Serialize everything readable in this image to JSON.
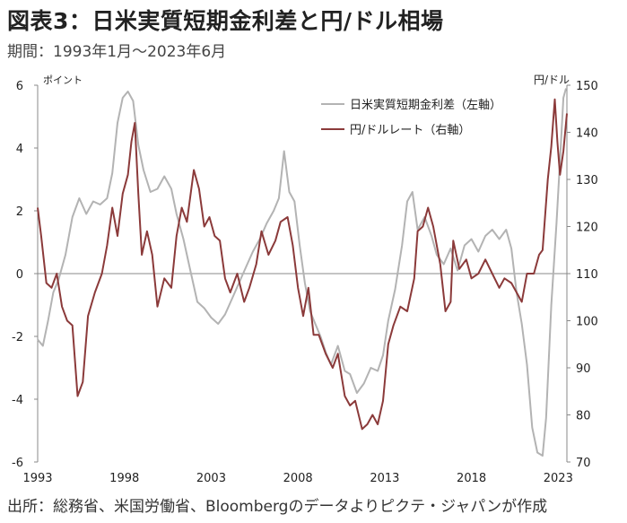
{
  "header": {
    "title": "図表3：日米実質短期金利差と円/ドル相場",
    "subtitle": "期間：1993年1月～2023年6月"
  },
  "footer": {
    "source": "出所：総務省、米国労働省、Bloombergのデータよりピクテ・ジャパンが作成"
  },
  "chart_data": {
    "type": "line",
    "xlim": [
      1993.0,
      2023.5
    ],
    "x_ticks": [
      1993,
      1998,
      2003,
      2008,
      2013,
      2018,
      2023
    ],
    "y_left": {
      "unit_label": "ポイント",
      "lim": [
        -6,
        6
      ],
      "ticks": [
        -6,
        -4,
        -2,
        0,
        2,
        4,
        6
      ],
      "color": "#222222"
    },
    "y_right": {
      "unit_label": "円/ドル",
      "lim": [
        70,
        150
      ],
      "ticks": [
        70,
        80,
        90,
        100,
        110,
        120,
        130,
        140,
        150
      ],
      "color": "#222222"
    },
    "zero_line": 0,
    "legend_position": "top-center",
    "series": [
      {
        "name": "日米実質短期金利差（左軸）",
        "axis": "left",
        "color": "#b3b3b3",
        "points": [
          [
            1993.0,
            -2.1
          ],
          [
            1993.3,
            -2.3
          ],
          [
            1993.6,
            -1.5
          ],
          [
            1993.9,
            -0.6
          ],
          [
            1994.2,
            -0.2
          ],
          [
            1994.6,
            0.6
          ],
          [
            1995.0,
            1.8
          ],
          [
            1995.4,
            2.4
          ],
          [
            1995.8,
            1.9
          ],
          [
            1996.2,
            2.3
          ],
          [
            1996.6,
            2.2
          ],
          [
            1997.0,
            2.4
          ],
          [
            1997.3,
            3.2
          ],
          [
            1997.6,
            4.8
          ],
          [
            1997.9,
            5.6
          ],
          [
            1998.2,
            5.8
          ],
          [
            1998.5,
            5.5
          ],
          [
            1998.8,
            4.1
          ],
          [
            1999.1,
            3.3
          ],
          [
            1999.5,
            2.6
          ],
          [
            1999.9,
            2.7
          ],
          [
            2000.3,
            3.1
          ],
          [
            2000.7,
            2.7
          ],
          [
            2001.0,
            1.9
          ],
          [
            2001.4,
            1.1
          ],
          [
            2001.8,
            0.1
          ],
          [
            2002.2,
            -0.9
          ],
          [
            2002.6,
            -1.1
          ],
          [
            2003.0,
            -1.4
          ],
          [
            2003.4,
            -1.6
          ],
          [
            2003.8,
            -1.3
          ],
          [
            2004.2,
            -0.8
          ],
          [
            2004.6,
            -0.3
          ],
          [
            2005.0,
            0.2
          ],
          [
            2005.4,
            0.7
          ],
          [
            2005.8,
            1.1
          ],
          [
            2006.2,
            1.6
          ],
          [
            2006.6,
            2.0
          ],
          [
            2006.9,
            2.4
          ],
          [
            2007.2,
            3.9
          ],
          [
            2007.5,
            2.6
          ],
          [
            2007.8,
            2.3
          ],
          [
            2008.1,
            0.9
          ],
          [
            2008.4,
            -0.3
          ],
          [
            2008.7,
            -1.2
          ],
          [
            2009.0,
            -1.6
          ],
          [
            2009.3,
            -2.0
          ],
          [
            2009.6,
            -2.5
          ],
          [
            2009.9,
            -2.9
          ],
          [
            2010.3,
            -2.3
          ],
          [
            2010.7,
            -3.1
          ],
          [
            2011.0,
            -3.2
          ],
          [
            2011.4,
            -3.8
          ],
          [
            2011.8,
            -3.5
          ],
          [
            2012.2,
            -3.0
          ],
          [
            2012.6,
            -3.1
          ],
          [
            2012.9,
            -2.6
          ],
          [
            2013.2,
            -1.5
          ],
          [
            2013.6,
            -0.5
          ],
          [
            2014.0,
            0.9
          ],
          [
            2014.3,
            2.3
          ],
          [
            2014.6,
            2.6
          ],
          [
            2014.9,
            1.4
          ],
          [
            2015.3,
            1.8
          ],
          [
            2015.7,
            1.2
          ],
          [
            2016.0,
            0.6
          ],
          [
            2016.4,
            0.3
          ],
          [
            2016.8,
            0.8
          ],
          [
            2017.2,
            0.1
          ],
          [
            2017.6,
            0.9
          ],
          [
            2018.0,
            1.1
          ],
          [
            2018.4,
            0.7
          ],
          [
            2018.8,
            1.2
          ],
          [
            2019.2,
            1.4
          ],
          [
            2019.6,
            1.1
          ],
          [
            2020.0,
            1.4
          ],
          [
            2020.3,
            0.8
          ],
          [
            2020.6,
            -0.6
          ],
          [
            2020.9,
            -1.6
          ],
          [
            2021.2,
            -2.9
          ],
          [
            2021.5,
            -4.9
          ],
          [
            2021.8,
            -5.7
          ],
          [
            2022.1,
            -5.8
          ],
          [
            2022.3,
            -4.6
          ],
          [
            2022.6,
            -1.0
          ],
          [
            2022.9,
            1.6
          ],
          [
            2023.1,
            3.6
          ],
          [
            2023.3,
            5.6
          ],
          [
            2023.45,
            5.9
          ]
        ]
      },
      {
        "name": "円/ドルレート（右軸）",
        "axis": "right",
        "color": "#8b3a3a",
        "points": [
          [
            1993.0,
            124
          ],
          [
            1993.2,
            118
          ],
          [
            1993.5,
            108
          ],
          [
            1993.8,
            107
          ],
          [
            1994.1,
            110
          ],
          [
            1994.4,
            103
          ],
          [
            1994.7,
            100
          ],
          [
            1995.0,
            99
          ],
          [
            1995.3,
            84
          ],
          [
            1995.6,
            87
          ],
          [
            1995.9,
            101
          ],
          [
            1996.3,
            106
          ],
          [
            1996.7,
            110
          ],
          [
            1997.0,
            116
          ],
          [
            1997.3,
            124
          ],
          [
            1997.6,
            118
          ],
          [
            1997.9,
            127
          ],
          [
            1998.2,
            131
          ],
          [
            1998.4,
            138
          ],
          [
            1998.6,
            142
          ],
          [
            1998.8,
            127
          ],
          [
            1999.0,
            114
          ],
          [
            1999.3,
            119
          ],
          [
            1999.6,
            114
          ],
          [
            1999.9,
            103
          ],
          [
            2000.3,
            109
          ],
          [
            2000.7,
            107
          ],
          [
            2001.0,
            118
          ],
          [
            2001.3,
            124
          ],
          [
            2001.6,
            121
          ],
          [
            2002.0,
            132
          ],
          [
            2002.3,
            128
          ],
          [
            2002.6,
            120
          ],
          [
            2002.9,
            122
          ],
          [
            2003.2,
            118
          ],
          [
            2003.5,
            117
          ],
          [
            2003.8,
            109
          ],
          [
            2004.1,
            106
          ],
          [
            2004.5,
            110
          ],
          [
            2004.9,
            104
          ],
          [
            2005.2,
            107
          ],
          [
            2005.6,
            112
          ],
          [
            2005.9,
            119
          ],
          [
            2006.3,
            114
          ],
          [
            2006.7,
            117
          ],
          [
            2007.0,
            121
          ],
          [
            2007.4,
            122
          ],
          [
            2007.7,
            116
          ],
          [
            2008.0,
            107
          ],
          [
            2008.3,
            101
          ],
          [
            2008.6,
            107
          ],
          [
            2008.9,
            97
          ],
          [
            2009.2,
            97
          ],
          [
            2009.6,
            93
          ],
          [
            2010.0,
            90
          ],
          [
            2010.3,
            93
          ],
          [
            2010.7,
            84
          ],
          [
            2011.0,
            82
          ],
          [
            2011.3,
            83
          ],
          [
            2011.7,
            77
          ],
          [
            2012.0,
            78
          ],
          [
            2012.3,
            80
          ],
          [
            2012.6,
            78
          ],
          [
            2012.9,
            83
          ],
          [
            2013.2,
            95
          ],
          [
            2013.5,
            99
          ],
          [
            2013.9,
            103
          ],
          [
            2014.3,
            102
          ],
          [
            2014.7,
            109
          ],
          [
            2014.9,
            119
          ],
          [
            2015.2,
            120
          ],
          [
            2015.5,
            124
          ],
          [
            2015.8,
            120
          ],
          [
            2016.2,
            112
          ],
          [
            2016.5,
            102
          ],
          [
            2016.8,
            104
          ],
          [
            2016.95,
            117
          ],
          [
            2017.3,
            111
          ],
          [
            2017.7,
            113
          ],
          [
            2018.0,
            109
          ],
          [
            2018.4,
            110
          ],
          [
            2018.8,
            113
          ],
          [
            2019.2,
            110
          ],
          [
            2019.6,
            107
          ],
          [
            2019.9,
            109
          ],
          [
            2020.3,
            108
          ],
          [
            2020.6,
            106
          ],
          [
            2020.9,
            104
          ],
          [
            2021.2,
            110
          ],
          [
            2021.6,
            110
          ],
          [
            2021.9,
            114
          ],
          [
            2022.1,
            115
          ],
          [
            2022.4,
            130
          ],
          [
            2022.6,
            137
          ],
          [
            2022.8,
            147
          ],
          [
            2022.95,
            138
          ],
          [
            2023.1,
            131
          ],
          [
            2023.3,
            136
          ],
          [
            2023.5,
            144
          ]
        ]
      }
    ]
  }
}
